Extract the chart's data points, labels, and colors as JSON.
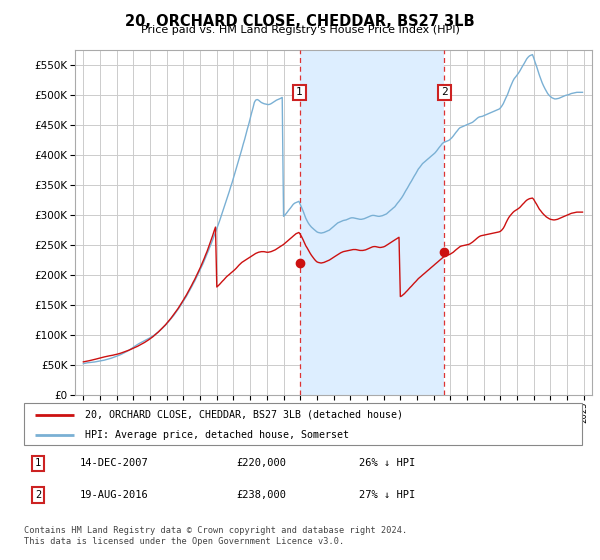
{
  "title": "20, ORCHARD CLOSE, CHEDDAR, BS27 3LB",
  "subtitle": "Price paid vs. HM Land Registry's House Price Index (HPI)",
  "ylim": [
    0,
    575000
  ],
  "yticks": [
    0,
    50000,
    100000,
    150000,
    200000,
    250000,
    300000,
    350000,
    400000,
    450000,
    500000,
    550000
  ],
  "xlim": [
    1994.5,
    2025.5
  ],
  "sale1_year": 2007.96,
  "sale1_price": 220000,
  "sale1_label": "1",
  "sale2_year": 2016.64,
  "sale2_price": 238000,
  "sale2_label": "2",
  "hpi_color": "#7ab0d4",
  "price_color": "#cc1111",
  "vline_color": "#dd3333",
  "shade_color": "#ddeeff",
  "grid_color": "#cccccc",
  "bg_color": "#ffffff",
  "legend_line1": "20, ORCHARD CLOSE, CHEDDAR, BS27 3LB (detached house)",
  "legend_line2": "HPI: Average price, detached house, Somerset",
  "table_row1": [
    "1",
    "14-DEC-2007",
    "£220,000",
    "26% ↓ HPI"
  ],
  "table_row2": [
    "2",
    "19-AUG-2016",
    "£238,000",
    "27% ↓ HPI"
  ],
  "footer": "Contains HM Land Registry data © Crown copyright and database right 2024.\nThis data is licensed under the Open Government Licence v3.0.",
  "hpi_years": [
    1995.0,
    1995.08,
    1995.17,
    1995.25,
    1995.33,
    1995.42,
    1995.5,
    1995.58,
    1995.67,
    1995.75,
    1995.83,
    1995.92,
    1996.0,
    1996.08,
    1996.17,
    1996.25,
    1996.33,
    1996.42,
    1996.5,
    1996.58,
    1996.67,
    1996.75,
    1996.83,
    1996.92,
    1997.0,
    1997.08,
    1997.17,
    1997.25,
    1997.33,
    1997.42,
    1997.5,
    1997.58,
    1997.67,
    1997.75,
    1997.83,
    1997.92,
    1998.0,
    1998.08,
    1998.17,
    1998.25,
    1998.33,
    1998.42,
    1998.5,
    1998.58,
    1998.67,
    1998.75,
    1998.83,
    1998.92,
    1999.0,
    1999.08,
    1999.17,
    1999.25,
    1999.33,
    1999.42,
    1999.5,
    1999.58,
    1999.67,
    1999.75,
    1999.83,
    1999.92,
    2000.0,
    2000.08,
    2000.17,
    2000.25,
    2000.33,
    2000.42,
    2000.5,
    2000.58,
    2000.67,
    2000.75,
    2000.83,
    2000.92,
    2001.0,
    2001.08,
    2001.17,
    2001.25,
    2001.33,
    2001.42,
    2001.5,
    2001.58,
    2001.67,
    2001.75,
    2001.83,
    2001.92,
    2002.0,
    2002.08,
    2002.17,
    2002.25,
    2002.33,
    2002.42,
    2002.5,
    2002.58,
    2002.67,
    2002.75,
    2002.83,
    2002.92,
    2003.0,
    2003.08,
    2003.17,
    2003.25,
    2003.33,
    2003.42,
    2003.5,
    2003.58,
    2003.67,
    2003.75,
    2003.83,
    2003.92,
    2004.0,
    2004.08,
    2004.17,
    2004.25,
    2004.33,
    2004.42,
    2004.5,
    2004.58,
    2004.67,
    2004.75,
    2004.83,
    2004.92,
    2005.0,
    2005.08,
    2005.17,
    2005.25,
    2005.33,
    2005.42,
    2005.5,
    2005.58,
    2005.67,
    2005.75,
    2005.83,
    2005.92,
    2006.0,
    2006.08,
    2006.17,
    2006.25,
    2006.33,
    2006.42,
    2006.5,
    2006.58,
    2006.67,
    2006.75,
    2006.83,
    2006.92,
    2007.0,
    2007.08,
    2007.17,
    2007.25,
    2007.33,
    2007.42,
    2007.5,
    2007.58,
    2007.67,
    2007.75,
    2007.83,
    2007.92,
    2008.0,
    2008.08,
    2008.17,
    2008.25,
    2008.33,
    2008.42,
    2008.5,
    2008.58,
    2008.67,
    2008.75,
    2008.83,
    2008.92,
    2009.0,
    2009.08,
    2009.17,
    2009.25,
    2009.33,
    2009.42,
    2009.5,
    2009.58,
    2009.67,
    2009.75,
    2009.83,
    2009.92,
    2010.0,
    2010.08,
    2010.17,
    2010.25,
    2010.33,
    2010.42,
    2010.5,
    2010.58,
    2010.67,
    2010.75,
    2010.83,
    2010.92,
    2011.0,
    2011.08,
    2011.17,
    2011.25,
    2011.33,
    2011.42,
    2011.5,
    2011.58,
    2011.67,
    2011.75,
    2011.83,
    2011.92,
    2012.0,
    2012.08,
    2012.17,
    2012.25,
    2012.33,
    2012.42,
    2012.5,
    2012.58,
    2012.67,
    2012.75,
    2012.83,
    2012.92,
    2013.0,
    2013.08,
    2013.17,
    2013.25,
    2013.33,
    2013.42,
    2013.5,
    2013.58,
    2013.67,
    2013.75,
    2013.83,
    2013.92,
    2014.0,
    2014.08,
    2014.17,
    2014.25,
    2014.33,
    2014.42,
    2014.5,
    2014.58,
    2014.67,
    2014.75,
    2014.83,
    2014.92,
    2015.0,
    2015.08,
    2015.17,
    2015.25,
    2015.33,
    2015.42,
    2015.5,
    2015.58,
    2015.67,
    2015.75,
    2015.83,
    2015.92,
    2016.0,
    2016.08,
    2016.17,
    2016.25,
    2016.33,
    2016.42,
    2016.5,
    2016.58,
    2016.67,
    2016.75,
    2016.83,
    2016.92,
    2017.0,
    2017.08,
    2017.17,
    2017.25,
    2017.33,
    2017.42,
    2017.5,
    2017.58,
    2017.67,
    2017.75,
    2017.83,
    2017.92,
    2018.0,
    2018.08,
    2018.17,
    2018.25,
    2018.33,
    2018.42,
    2018.5,
    2018.58,
    2018.67,
    2018.75,
    2018.83,
    2018.92,
    2019.0,
    2019.08,
    2019.17,
    2019.25,
    2019.33,
    2019.42,
    2019.5,
    2019.58,
    2019.67,
    2019.75,
    2019.83,
    2019.92,
    2020.0,
    2020.08,
    2020.17,
    2020.25,
    2020.33,
    2020.42,
    2020.5,
    2020.58,
    2020.67,
    2020.75,
    2020.83,
    2020.92,
    2021.0,
    2021.08,
    2021.17,
    2021.25,
    2021.33,
    2021.42,
    2021.5,
    2021.58,
    2021.67,
    2021.75,
    2021.83,
    2021.92,
    2022.0,
    2022.08,
    2022.17,
    2022.25,
    2022.33,
    2022.42,
    2022.5,
    2022.58,
    2022.67,
    2022.75,
    2022.83,
    2022.92,
    2023.0,
    2023.08,
    2023.17,
    2023.25,
    2023.33,
    2023.42,
    2023.5,
    2023.58,
    2023.67,
    2023.75,
    2023.83,
    2023.92,
    2024.0,
    2024.08,
    2024.17,
    2024.25,
    2024.33,
    2024.42,
    2024.5,
    2024.58,
    2024.67,
    2024.75,
    2024.83,
    2024.92
  ],
  "hpi_vals": [
    52000,
    52500,
    53000,
    53500,
    53800,
    54000,
    54200,
    54500,
    54800,
    55200,
    55600,
    56000,
    56400,
    56800,
    57300,
    57800,
    58400,
    59000,
    59700,
    60400,
    61100,
    61900,
    62700,
    63500,
    64400,
    65300,
    66300,
    67300,
    68400,
    69500,
    70700,
    72000,
    73300,
    74700,
    76200,
    77800,
    79400,
    81000,
    82500,
    84000,
    85400,
    86700,
    88000,
    89200,
    90400,
    91500,
    92700,
    93900,
    95200,
    96600,
    98100,
    99700,
    101400,
    103200,
    105100,
    107100,
    109200,
    111400,
    113700,
    116100,
    118600,
    121200,
    123900,
    126700,
    129600,
    132600,
    135700,
    138900,
    142200,
    145600,
    149100,
    152700,
    156400,
    160200,
    164100,
    168100,
    172200,
    176400,
    180700,
    185100,
    189600,
    194200,
    198900,
    203700,
    208600,
    213600,
    218800,
    224100,
    229600,
    235200,
    240900,
    246700,
    252600,
    258700,
    264900,
    271200,
    277600,
    284100,
    290700,
    297400,
    304200,
    311100,
    318100,
    325200,
    332400,
    339700,
    347100,
    354600,
    362200,
    369900,
    377700,
    385600,
    393600,
    401700,
    409900,
    418200,
    426600,
    435100,
    443700,
    452400,
    461200,
    470100,
    479100,
    488200,
    492000,
    493000,
    492000,
    490000,
    488000,
    487000,
    486000,
    485500,
    485000,
    484500,
    485000,
    486000,
    487500,
    489000,
    490500,
    492000,
    493000,
    494000,
    495000,
    496500,
    298000,
    300000,
    303000,
    306000,
    309000,
    312000,
    315000,
    318000,
    320000,
    321000,
    322000,
    323000,
    318000,
    313000,
    307000,
    301000,
    295000,
    290000,
    286000,
    283000,
    280000,
    278000,
    276000,
    274000,
    272000,
    271000,
    270500,
    270000,
    270500,
    271000,
    272000,
    273000,
    274000,
    275000,
    277000,
    279000,
    281000,
    283000,
    285000,
    287000,
    288000,
    289000,
    290000,
    291000,
    291500,
    292000,
    293000,
    294000,
    295000,
    295500,
    295500,
    295000,
    294500,
    294000,
    293500,
    293000,
    293000,
    293500,
    294000,
    295000,
    296000,
    297000,
    298000,
    299000,
    299500,
    299500,
    299000,
    298500,
    298000,
    298000,
    298500,
    299000,
    300000,
    301000,
    302000,
    304000,
    306000,
    308000,
    310000,
    312000,
    314000,
    317000,
    320000,
    323000,
    326000,
    329000,
    333000,
    337000,
    341000,
    345000,
    349000,
    353000,
    357000,
    361000,
    365000,
    369000,
    373000,
    377000,
    380000,
    383000,
    386000,
    388000,
    390000,
    392000,
    394000,
    396000,
    398000,
    400000,
    402000,
    404000,
    407000,
    410000,
    413000,
    416000,
    419000,
    421000,
    422000,
    423000,
    424000,
    425000,
    427000,
    429000,
    432000,
    435000,
    438000,
    441000,
    444000,
    446000,
    447000,
    448000,
    449000,
    450000,
    451000,
    452000,
    453000,
    454000,
    455000,
    457000,
    459000,
    461000,
    463000,
    464000,
    464500,
    465000,
    466000,
    467000,
    468000,
    469000,
    470000,
    471000,
    472000,
    473000,
    474000,
    475000,
    476000,
    477000,
    479000,
    482000,
    486000,
    491000,
    496000,
    501000,
    507000,
    513000,
    519000,
    524000,
    528000,
    531000,
    534000,
    537000,
    541000,
    545000,
    549000,
    553000,
    557000,
    561000,
    564000,
    566000,
    567000,
    568000,
    562000,
    555000,
    548000,
    541000,
    534000,
    527000,
    521000,
    516000,
    511000,
    507000,
    503000,
    500000,
    498000,
    496000,
    495000,
    494000,
    494000,
    494500,
    495000,
    496000,
    497000,
    498000,
    499000,
    500000,
    500500,
    501000,
    502000,
    503000,
    503500,
    504000,
    504500,
    505000,
    505000,
    505000,
    505000,
    505000
  ],
  "price_years": [
    1995.0,
    1995.08,
    1995.17,
    1995.25,
    1995.33,
    1995.42,
    1995.5,
    1995.58,
    1995.67,
    1995.75,
    1995.83,
    1995.92,
    1996.0,
    1996.08,
    1996.17,
    1996.25,
    1996.33,
    1996.42,
    1996.5,
    1996.58,
    1996.67,
    1996.75,
    1996.83,
    1996.92,
    1997.0,
    1997.08,
    1997.17,
    1997.25,
    1997.33,
    1997.42,
    1997.5,
    1997.58,
    1997.67,
    1997.75,
    1997.83,
    1997.92,
    1998.0,
    1998.08,
    1998.17,
    1998.25,
    1998.33,
    1998.42,
    1998.5,
    1998.58,
    1998.67,
    1998.75,
    1998.83,
    1998.92,
    1999.0,
    1999.08,
    1999.17,
    1999.25,
    1999.33,
    1999.42,
    1999.5,
    1999.58,
    1999.67,
    1999.75,
    1999.83,
    1999.92,
    2000.0,
    2000.08,
    2000.17,
    2000.25,
    2000.33,
    2000.42,
    2000.5,
    2000.58,
    2000.67,
    2000.75,
    2000.83,
    2000.92,
    2001.0,
    2001.08,
    2001.17,
    2001.25,
    2001.33,
    2001.42,
    2001.5,
    2001.58,
    2001.67,
    2001.75,
    2001.83,
    2001.92,
    2002.0,
    2002.08,
    2002.17,
    2002.25,
    2002.33,
    2002.42,
    2002.5,
    2002.58,
    2002.67,
    2002.75,
    2002.83,
    2002.92,
    2003.0,
    2003.08,
    2003.17,
    2003.25,
    2003.33,
    2003.42,
    2003.5,
    2003.58,
    2003.67,
    2003.75,
    2003.83,
    2003.92,
    2004.0,
    2004.08,
    2004.17,
    2004.25,
    2004.33,
    2004.42,
    2004.5,
    2004.58,
    2004.67,
    2004.75,
    2004.83,
    2004.92,
    2005.0,
    2005.08,
    2005.17,
    2005.25,
    2005.33,
    2005.42,
    2005.5,
    2005.58,
    2005.67,
    2005.75,
    2005.83,
    2005.92,
    2006.0,
    2006.08,
    2006.17,
    2006.25,
    2006.33,
    2006.42,
    2006.5,
    2006.58,
    2006.67,
    2006.75,
    2006.83,
    2006.92,
    2007.0,
    2007.08,
    2007.17,
    2007.25,
    2007.33,
    2007.42,
    2007.5,
    2007.58,
    2007.67,
    2007.75,
    2007.83,
    2007.92,
    2008.0,
    2008.08,
    2008.17,
    2008.25,
    2008.33,
    2008.42,
    2008.5,
    2008.58,
    2008.67,
    2008.75,
    2008.83,
    2008.92,
    2009.0,
    2009.08,
    2009.17,
    2009.25,
    2009.33,
    2009.42,
    2009.5,
    2009.58,
    2009.67,
    2009.75,
    2009.83,
    2009.92,
    2010.0,
    2010.08,
    2010.17,
    2010.25,
    2010.33,
    2010.42,
    2010.5,
    2010.58,
    2010.67,
    2010.75,
    2010.83,
    2010.92,
    2011.0,
    2011.08,
    2011.17,
    2011.25,
    2011.33,
    2011.42,
    2011.5,
    2011.58,
    2011.67,
    2011.75,
    2011.83,
    2011.92,
    2012.0,
    2012.08,
    2012.17,
    2012.25,
    2012.33,
    2012.42,
    2012.5,
    2012.58,
    2012.67,
    2012.75,
    2012.83,
    2012.92,
    2013.0,
    2013.08,
    2013.17,
    2013.25,
    2013.33,
    2013.42,
    2013.5,
    2013.58,
    2013.67,
    2013.75,
    2013.83,
    2013.92,
    2014.0,
    2014.08,
    2014.17,
    2014.25,
    2014.33,
    2014.42,
    2014.5,
    2014.58,
    2014.67,
    2014.75,
    2014.83,
    2014.92,
    2015.0,
    2015.08,
    2015.17,
    2015.25,
    2015.33,
    2015.42,
    2015.5,
    2015.58,
    2015.67,
    2015.75,
    2015.83,
    2015.92,
    2016.0,
    2016.08,
    2016.17,
    2016.25,
    2016.33,
    2016.42,
    2016.5,
    2016.58,
    2016.67,
    2016.75,
    2016.83,
    2016.92,
    2017.0,
    2017.08,
    2017.17,
    2017.25,
    2017.33,
    2017.42,
    2017.5,
    2017.58,
    2017.67,
    2017.75,
    2017.83,
    2017.92,
    2018.0,
    2018.08,
    2018.17,
    2018.25,
    2018.33,
    2018.42,
    2018.5,
    2018.58,
    2018.67,
    2018.75,
    2018.83,
    2018.92,
    2019.0,
    2019.08,
    2019.17,
    2019.25,
    2019.33,
    2019.42,
    2019.5,
    2019.58,
    2019.67,
    2019.75,
    2019.83,
    2019.92,
    2020.0,
    2020.08,
    2020.17,
    2020.25,
    2020.33,
    2020.42,
    2020.5,
    2020.58,
    2020.67,
    2020.75,
    2020.83,
    2020.92,
    2021.0,
    2021.08,
    2021.17,
    2021.25,
    2021.33,
    2021.42,
    2021.5,
    2021.58,
    2021.67,
    2021.75,
    2021.83,
    2021.92,
    2022.0,
    2022.08,
    2022.17,
    2022.25,
    2022.33,
    2022.42,
    2022.5,
    2022.58,
    2022.67,
    2022.75,
    2022.83,
    2022.92,
    2023.0,
    2023.08,
    2023.17,
    2023.25,
    2023.33,
    2023.42,
    2023.5,
    2023.58,
    2023.67,
    2023.75,
    2023.83,
    2023.92,
    2024.0,
    2024.08,
    2024.17,
    2024.25,
    2024.33,
    2024.42,
    2024.5,
    2024.58,
    2024.67,
    2024.75,
    2024.83,
    2024.92
  ],
  "price_vals": [
    55000,
    55400,
    55800,
    56300,
    56800,
    57300,
    57900,
    58400,
    59000,
    59600,
    60200,
    60800,
    61400,
    62000,
    62600,
    63200,
    63700,
    64200,
    64700,
    65200,
    65600,
    66000,
    66500,
    67000,
    67600,
    68200,
    68900,
    69600,
    70400,
    71200,
    72000,
    72900,
    73800,
    74700,
    75700,
    76700,
    77700,
    78800,
    79900,
    81000,
    82200,
    83400,
    84700,
    86000,
    87400,
    88800,
    90300,
    91900,
    93500,
    95200,
    97000,
    98900,
    100900,
    102900,
    105000,
    107200,
    109500,
    111900,
    114300,
    116800,
    119400,
    122100,
    124900,
    127800,
    130800,
    133900,
    137100,
    140400,
    143800,
    147300,
    150900,
    154600,
    158400,
    162300,
    166300,
    170400,
    174600,
    178900,
    183300,
    187800,
    192400,
    197100,
    201900,
    206800,
    211800,
    217000,
    222400,
    228000,
    233800,
    239800,
    246000,
    252400,
    259000,
    265800,
    272800,
    280000,
    180000,
    182000,
    184500,
    187000,
    189500,
    192000,
    194500,
    197000,
    199000,
    201000,
    203000,
    205000,
    207000,
    209000,
    211500,
    214000,
    216500,
    219000,
    221000,
    222500,
    224000,
    225500,
    227000,
    228500,
    230000,
    231500,
    233000,
    234500,
    236000,
    237000,
    238000,
    238500,
    239000,
    239000,
    239000,
    238500,
    238000,
    238000,
    238500,
    239000,
    240000,
    241000,
    242000,
    243500,
    245000,
    246500,
    248000,
    249500,
    251000,
    253000,
    255000,
    257000,
    259000,
    261000,
    263000,
    265000,
    267000,
    269000,
    270000,
    271000,
    268000,
    264000,
    259000,
    254000,
    249000,
    245000,
    241000,
    237000,
    233000,
    230000,
    227000,
    224000,
    222000,
    221000,
    220500,
    220000,
    220500,
    221000,
    222000,
    223000,
    224000,
    225000,
    226500,
    228000,
    229500,
    231000,
    232500,
    234000,
    235500,
    237000,
    238000,
    239000,
    239500,
    240000,
    240500,
    241000,
    241500,
    242000,
    242500,
    242500,
    242500,
    242000,
    241500,
    241000,
    241000,
    241000,
    241500,
    242000,
    243000,
    244000,
    245000,
    246000,
    247000,
    247500,
    247500,
    247000,
    246500,
    246000,
    246000,
    246500,
    247000,
    248000,
    249500,
    251000,
    252500,
    254000,
    255500,
    257000,
    258500,
    260000,
    261500,
    263000,
    164000,
    165000,
    167000,
    169000,
    171500,
    174000,
    176500,
    179000,
    181500,
    184000,
    186500,
    189000,
    191500,
    194000,
    196000,
    198000,
    200000,
    202000,
    204000,
    206000,
    208000,
    210000,
    212000,
    214000,
    216000,
    218000,
    220000,
    222000,
    224000,
    226000,
    228000,
    230000,
    231000,
    232000,
    233000,
    234000,
    235000,
    236500,
    238000,
    240000,
    242000,
    244000,
    246000,
    247500,
    248500,
    249000,
    249500,
    250000,
    250500,
    251000,
    252000,
    253500,
    255000,
    257000,
    259000,
    261000,
    263000,
    264500,
    265500,
    266000,
    266500,
    267000,
    267500,
    268000,
    268500,
    269000,
    269500,
    270000,
    270500,
    271000,
    271500,
    272000,
    273000,
    275000,
    278000,
    282000,
    287000,
    292000,
    296000,
    299000,
    302000,
    304500,
    306500,
    308000,
    309500,
    311000,
    313000,
    315500,
    318000,
    320500,
    323000,
    325000,
    326500,
    327500,
    328000,
    328500,
    326000,
    322000,
    318000,
    314000,
    310000,
    307000,
    304000,
    301500,
    299000,
    297000,
    295500,
    294000,
    293000,
    292500,
    292000,
    292000,
    292500,
    293000,
    294000,
    295000,
    296000,
    297000,
    298000,
    299000,
    300000,
    301000,
    302000,
    303000,
    303500,
    304000,
    304500,
    305000,
    305000,
    305000,
    305000,
    305000
  ]
}
